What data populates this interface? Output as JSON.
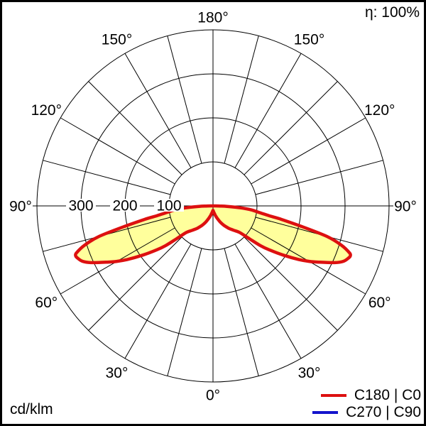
{
  "header": {
    "efficiency_label": "η: 100%"
  },
  "footer": {
    "unit_label": "cd/klm"
  },
  "legend": {
    "items": [
      {
        "label": "C180 | C0",
        "color": "#dd1010"
      },
      {
        "label": "C270 | C90",
        "color": "#1414cc"
      }
    ]
  },
  "colors": {
    "curve_red": "#dd1010",
    "fill_yellow": "#ffff9c",
    "curve_blue": "#1414cc",
    "grid": "#000000",
    "background": "#ffffff",
    "border": "#000000"
  },
  "chart_data": {
    "type": "polar",
    "subtype": "photometric-light-distribution",
    "title": "",
    "unit": "cd/klm",
    "efficiency": "η: 100%",
    "angle_axis": {
      "zero_position": "bottom",
      "grid_step_deg": 15,
      "label_step_deg": 30,
      "labels": [
        "0°",
        "30°",
        "60°",
        "90°",
        "120°",
        "150°",
        "180°"
      ],
      "labels_mirrored_both_sides": true
    },
    "radial_axis": {
      "ticks": [
        100,
        200,
        300,
        400
      ],
      "tick_labels": [
        "100",
        "200",
        "300"
      ],
      "max": 400,
      "labels_on_left_horizontal_axis": true
    },
    "series": [
      {
        "name": "C180 | C0",
        "color": "#dd1010",
        "fill_color": "#ffff9c",
        "symmetric_mirror": true,
        "gamma_deg": [
          0,
          5,
          10,
          15,
          20,
          25,
          30,
          35,
          40,
          45,
          48,
          50,
          52,
          55,
          58,
          60,
          62,
          65,
          67,
          69,
          70,
          71,
          73,
          75,
          77,
          79,
          80,
          82,
          84,
          86,
          88,
          89,
          90
        ],
        "values_cd_per_klm": [
          10,
          13,
          17,
          24,
          32,
          42,
          52,
          62,
          72,
          85,
          112,
          140,
          162,
          195,
          230,
          252,
          272,
          305,
          322,
          330,
          332,
          328,
          305,
          268,
          205,
          155,
          130,
          105,
          88,
          62,
          32,
          16,
          5
        ],
        "peak_intensity_cd_per_klm": 332,
        "peak_gamma_deg": 70
      },
      {
        "name": "C270 | C90",
        "color": "#1414cc",
        "visible_in_plot": false,
        "gamma_deg": [],
        "values_cd_per_klm": []
      }
    ]
  }
}
